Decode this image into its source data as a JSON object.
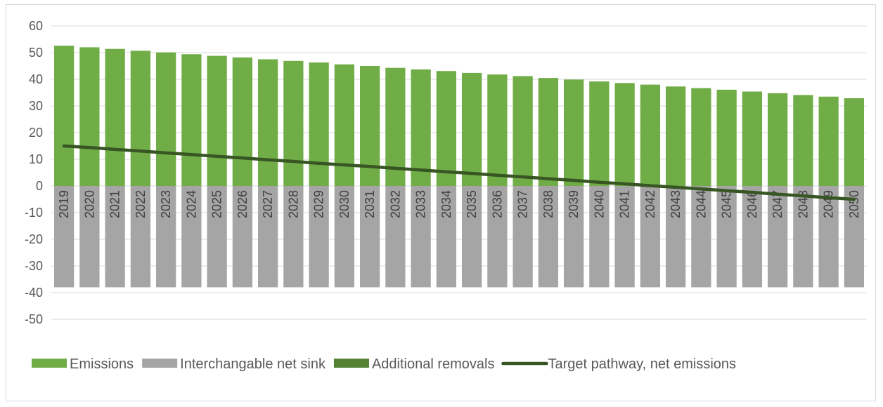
{
  "chart_data": {
    "type": "bar",
    "categories": [
      "2019",
      "2020",
      "2021",
      "2022",
      "2023",
      "2024",
      "2025",
      "2026",
      "2027",
      "2028",
      "2029",
      "2030",
      "2031",
      "2032",
      "2033",
      "2034",
      "2035",
      "2036",
      "2037",
      "2038",
      "2039",
      "2040",
      "2041",
      "2042",
      "2043",
      "2044",
      "2045",
      "2046",
      "2047",
      "2048",
      "2049",
      "2050"
    ],
    "series": [
      {
        "name": "Emissions",
        "kind": "bar",
        "color": "#70ad47",
        "values": [
          52.6,
          52.0,
          51.4,
          50.7,
          50.1,
          49.4,
          48.8,
          48.2,
          47.5,
          46.9,
          46.3,
          45.6,
          45.0,
          44.3,
          43.7,
          43.1,
          42.4,
          41.8,
          41.2,
          40.5,
          39.9,
          39.2,
          38.6,
          38.0,
          37.3,
          36.7,
          36.1,
          35.4,
          34.8,
          34.1,
          33.5,
          32.9
        ]
      },
      {
        "name": "Interchangable net sink",
        "kind": "bar",
        "color": "#a5a5a5",
        "values": [
          -38,
          -38,
          -38,
          -38,
          -38,
          -38,
          -38,
          -38,
          -38,
          -38,
          -38,
          -38,
          -38,
          -38,
          -38,
          -38,
          -38,
          -38,
          -38,
          -38,
          -38,
          -38,
          -38,
          -38,
          -38,
          -38,
          -38,
          -38,
          -38,
          -38,
          -38,
          -38
        ]
      },
      {
        "name": "Additional removals",
        "kind": "bar",
        "color": "#548235",
        "values": [
          0,
          0,
          0,
          0,
          0,
          0,
          0,
          0,
          0,
          0,
          0,
          0,
          0,
          0,
          0,
          0,
          0,
          0,
          0,
          0,
          0,
          0,
          0,
          0,
          0,
          0,
          0,
          0,
          0,
          0,
          0,
          0
        ]
      },
      {
        "name": "Target pathway, net emissions",
        "kind": "line",
        "color": "#375623",
        "values": [
          15.0,
          14.4,
          13.7,
          13.1,
          12.4,
          11.8,
          11.1,
          10.5,
          9.8,
          9.2,
          8.5,
          7.9,
          7.3,
          6.6,
          6.0,
          5.3,
          4.7,
          4.0,
          3.4,
          2.7,
          2.1,
          1.4,
          0.8,
          0.1,
          -0.5,
          -1.1,
          -1.8,
          -2.4,
          -3.1,
          -3.7,
          -4.4,
          -5.0
        ]
      }
    ],
    "yticks": [
      60,
      50,
      40,
      30,
      20,
      10,
      0,
      -10,
      -20,
      -30,
      -40,
      -50
    ],
    "ylim": [
      -50,
      60
    ],
    "grid": true,
    "legend_position": "bottom"
  }
}
